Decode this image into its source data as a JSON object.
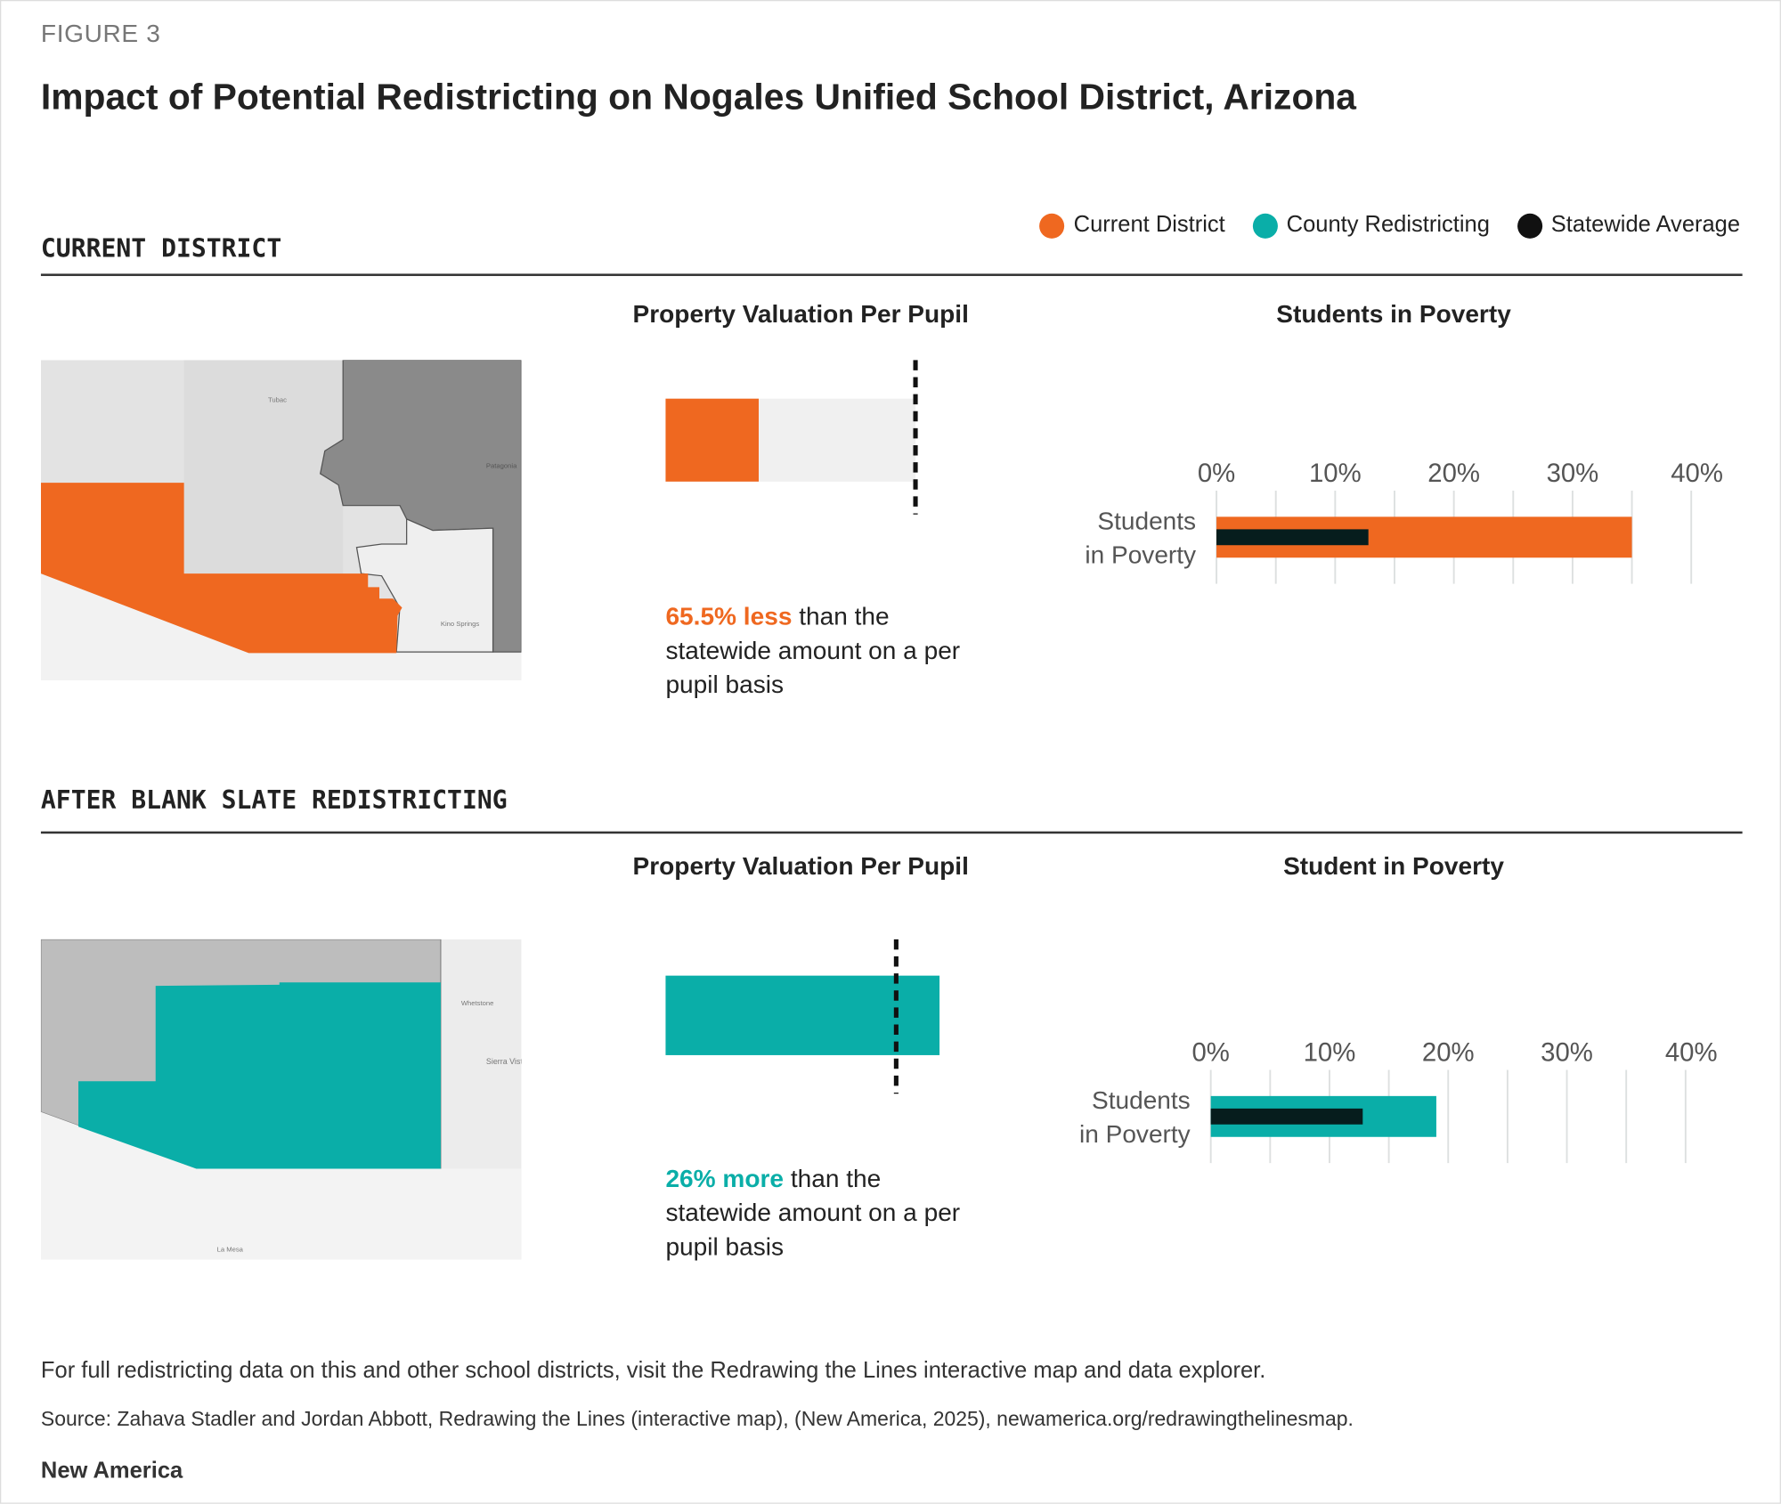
{
  "figure_label": "FIGURE 3",
  "title": "Impact of Potential Redistricting on Nogales Unified School District, Arizona",
  "legend": [
    {
      "label": "Current District",
      "color": "#ef6820"
    },
    {
      "label": "County Redistricting",
      "color": "#0aaea8"
    },
    {
      "label": "Statewide Average",
      "color": "#111111"
    }
  ],
  "sections": [
    {
      "heading": "CURRENT DISTRICT",
      "valuation_title": "Property Valuation Per Pupil",
      "poverty_title": "Students in Poverty",
      "note_highlight": "65.5% less",
      "note_rest": " than the statewide amount on a per pupil basis",
      "color": "#ef6820",
      "map_labels": [
        "Tubac",
        "Patagonia",
        "Kino Springs"
      ]
    },
    {
      "heading": "AFTER BLANK SLATE REDISTRICTING",
      "valuation_title": "Property Valuation Per Pupil",
      "poverty_title": "Student in Poverty",
      "note_highlight": "26% more",
      "note_rest": " than the statewide amount on a per pupil basis",
      "color": "#0aaea8",
      "map_labels": [
        "Whetstone",
        "Sierra Vista",
        "La Mesa"
      ]
    }
  ],
  "chart_data": [
    {
      "type": "bar",
      "title": "Property Valuation Per Pupil",
      "series": [
        {
          "name": "Current District",
          "values": [
            34.5
          ]
        }
      ],
      "reference": {
        "name": "Statewide Average",
        "value": 100
      },
      "unit": "percent of statewide average"
    },
    {
      "type": "bar",
      "title": "Students in Poverty",
      "categories": [
        "Students in Poverty"
      ],
      "xlim": [
        0,
        40
      ],
      "xticks": [
        "0%",
        "10%",
        "20%",
        "30%",
        "40%"
      ],
      "grid": true,
      "series": [
        {
          "name": "Current District",
          "values": [
            35
          ]
        },
        {
          "name": "Statewide Average",
          "values": [
            12.8
          ]
        }
      ]
    },
    {
      "type": "bar",
      "title": "Property Valuation Per Pupil",
      "series": [
        {
          "name": "County Redistricting",
          "values": [
            126
          ]
        }
      ],
      "reference": {
        "name": "Statewide Average",
        "value": 100
      },
      "unit": "percent of statewide average"
    },
    {
      "type": "bar",
      "title": "Student in Poverty",
      "categories": [
        "Students in Poverty"
      ],
      "xlim": [
        0,
        40
      ],
      "xticks": [
        "0%",
        "10%",
        "20%",
        "30%",
        "40%"
      ],
      "grid": true,
      "series": [
        {
          "name": "County Redistricting",
          "values": [
            19
          ]
        },
        {
          "name": "Statewide Average",
          "values": [
            12.8
          ]
        }
      ]
    }
  ],
  "category_label_lines": [
    "Students",
    "in Poverty"
  ],
  "footer_note": "For full redistricting data on this and other school districts, visit the Redrawing the Lines interactive map and data explorer.",
  "source": "Source: Zahava Stadler and Jordan Abbott, Redrawing the Lines (interactive map), (New America, 2025), newamerica.org/redrawingthelinesmap.",
  "brand": "New America"
}
